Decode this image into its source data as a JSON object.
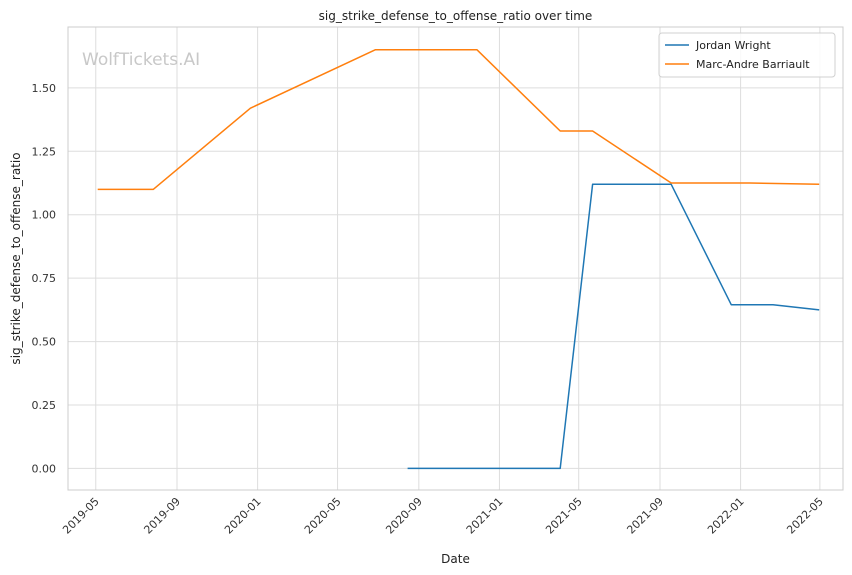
{
  "chart_data": {
    "type": "line",
    "title": "sig_strike_defense_to_offense_ratio over time",
    "xlabel": "Date",
    "ylabel": "sig_strike_defense_to_offense_ratio",
    "watermark": "WolfTickets.AI",
    "x_ticks": [
      "2019-05",
      "2019-09",
      "2020-01",
      "2020-05",
      "2020-09",
      "2021-01",
      "2021-05",
      "2021-09",
      "2022-01",
      "2022-05"
    ],
    "y_ticks": [
      "0.00",
      "0.25",
      "0.50",
      "0.75",
      "1.00",
      "1.25",
      "1.50"
    ],
    "ylim": [
      -0.085,
      1.74
    ],
    "xlim": [
      "2019-03-20",
      "2022-06-05"
    ],
    "grid": true,
    "legend_position": "top-right",
    "series": [
      {
        "name": "Jordan Wright",
        "color": "#1f77b4",
        "points": [
          {
            "x": "2020-08-15",
            "y": 0.0
          },
          {
            "x": "2021-04-03",
            "y": 0.0
          },
          {
            "x": "2021-05-22",
            "y": 1.12
          },
          {
            "x": "2021-09-18",
            "y": 1.12
          },
          {
            "x": "2021-12-18",
            "y": 0.645
          },
          {
            "x": "2022-02-19",
            "y": 0.645
          },
          {
            "x": "2022-04-30",
            "y": 0.625
          }
        ]
      },
      {
        "name": "Marc-Andre Barriault",
        "color": "#ff7f0e",
        "points": [
          {
            "x": "2019-05-04",
            "y": 1.1
          },
          {
            "x": "2019-07-27",
            "y": 1.1
          },
          {
            "x": "2019-12-21",
            "y": 1.42
          },
          {
            "x": "2020-06-27",
            "y": 1.65
          },
          {
            "x": "2020-11-28",
            "y": 1.65
          },
          {
            "x": "2021-04-03",
            "y": 1.33
          },
          {
            "x": "2021-05-22",
            "y": 1.33
          },
          {
            "x": "2021-09-18",
            "y": 1.125
          },
          {
            "x": "2022-01-15",
            "y": 1.125
          },
          {
            "x": "2022-04-30",
            "y": 1.12
          }
        ]
      }
    ]
  }
}
